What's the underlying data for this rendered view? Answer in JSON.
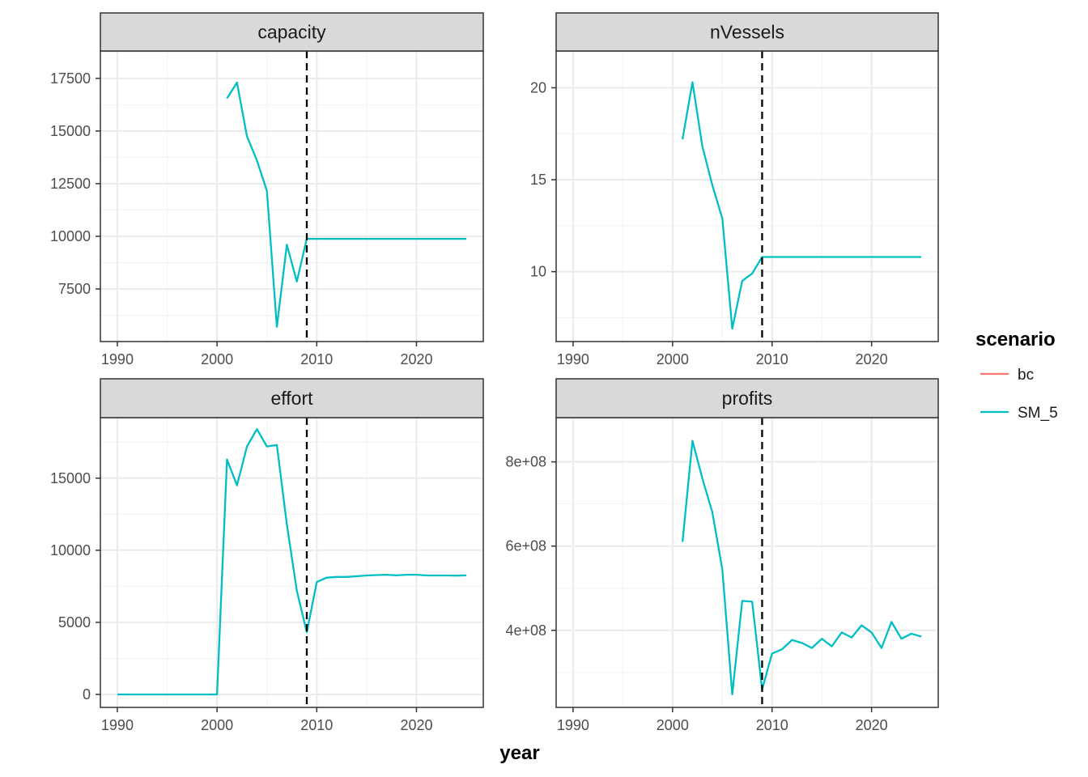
{
  "x_axis_title": "year",
  "legend": {
    "title": "scenario",
    "items": [
      {
        "label": "bc",
        "color": "#F8766D"
      },
      {
        "label": "SM_5",
        "color": "#00BFC4"
      }
    ]
  },
  "reference_line": {
    "x": 2009,
    "style": "dashed",
    "color": "#000000"
  },
  "chart_data": [
    {
      "type": "line",
      "title": "capacity",
      "xlim": [
        1988.3,
        2026.7
      ],
      "xticks": [
        1990,
        2000,
        2010,
        2020
      ],
      "xtick_labels": [
        "1990",
        "2000",
        "2010",
        "2020"
      ],
      "ylim": [
        5000,
        18800
      ],
      "yticks": [
        7500,
        10000,
        12500,
        15000,
        17500
      ],
      "ytick_labels": [
        "7500",
        "10000",
        "12500",
        "15000",
        "17500"
      ],
      "grid": true,
      "series": [
        {
          "name": "SM_5",
          "x": [
            2001,
            2002,
            2003,
            2004,
            2005,
            2006,
            2007,
            2008,
            2009,
            2010,
            2015,
            2020,
            2025
          ],
          "y": [
            16550,
            17300,
            14750,
            13600,
            12150,
            5700,
            9600,
            7850,
            9880,
            9880,
            9880,
            9880,
            9880
          ]
        }
      ]
    },
    {
      "type": "line",
      "title": "nVessels",
      "xlim": [
        1988.3,
        2026.7
      ],
      "xticks": [
        1990,
        2000,
        2010,
        2020
      ],
      "xtick_labels": [
        "1990",
        "2000",
        "2010",
        "2020"
      ],
      "ylim": [
        6.2,
        22.0
      ],
      "yticks": [
        10,
        15,
        20
      ],
      "ytick_labels": [
        "10",
        "15",
        "20"
      ],
      "grid": true,
      "series": [
        {
          "name": "SM_5",
          "x": [
            2001,
            2002,
            2003,
            2004,
            2005,
            2006,
            2007,
            2008,
            2009,
            2010,
            2015,
            2020,
            2025
          ],
          "y": [
            17.2,
            20.3,
            16.8,
            14.7,
            12.9,
            6.9,
            9.5,
            9.9,
            10.8,
            10.8,
            10.8,
            10.8,
            10.8
          ]
        }
      ]
    },
    {
      "type": "line",
      "title": "effort",
      "xlim": [
        1988.3,
        2026.7
      ],
      "xticks": [
        1990,
        2000,
        2010,
        2020
      ],
      "xtick_labels": [
        "1990",
        "2000",
        "2010",
        "2020"
      ],
      "ylim": [
        -900,
        19200
      ],
      "yticks": [
        0,
        5000,
        10000,
        15000
      ],
      "ytick_labels": [
        "0",
        "5000",
        "10000",
        "15000"
      ],
      "grid": true,
      "series": [
        {
          "name": "SM_5",
          "x": [
            1990,
            1991,
            1992,
            1993,
            1994,
            1995,
            1996,
            1997,
            1998,
            1999,
            2000,
            2001,
            2002,
            2003,
            2004,
            2005,
            2006,
            2007,
            2008,
            2009,
            2010,
            2011,
            2012,
            2013,
            2014,
            2015,
            2016,
            2017,
            2018,
            2019,
            2020,
            2021,
            2022,
            2023,
            2024,
            2025
          ],
          "y": [
            0,
            0,
            0,
            0,
            0,
            0,
            0,
            0,
            0,
            0,
            0,
            16300,
            14500,
            17200,
            18400,
            17200,
            17300,
            11800,
            7200,
            4300,
            7800,
            8100,
            8150,
            8150,
            8200,
            8250,
            8280,
            8300,
            8260,
            8300,
            8300,
            8250,
            8250,
            8250,
            8240,
            8260
          ]
        }
      ]
    },
    {
      "type": "line",
      "title": "profits",
      "xlim": [
        1988.3,
        2026.7
      ],
      "xticks": [
        1990,
        2000,
        2010,
        2020
      ],
      "xtick_labels": [
        "1990",
        "2000",
        "2010",
        "2020"
      ],
      "ylim": [
        217000000,
        905000000
      ],
      "yticks": [
        400000000,
        600000000,
        800000000
      ],
      "ytick_labels": [
        "4e+08",
        "6e+08",
        "8e+08"
      ],
      "grid": true,
      "series": [
        {
          "name": "SM_5",
          "x": [
            2001,
            2002,
            2003,
            2004,
            2005,
            2006,
            2007,
            2008,
            2009,
            2010,
            2011,
            2012,
            2013,
            2014,
            2015,
            2016,
            2017,
            2018,
            2019,
            2020,
            2021,
            2022,
            2023,
            2024,
            2025
          ],
          "y": [
            610000000,
            850000000,
            760000000,
            680000000,
            545000000,
            248000000,
            470000000,
            468000000,
            260000000,
            345000000,
            355000000,
            377000000,
            370000000,
            358000000,
            380000000,
            362000000,
            395000000,
            383000000,
            412000000,
            395000000,
            358000000,
            420000000,
            380000000,
            392000000,
            385000000
          ]
        }
      ]
    }
  ]
}
